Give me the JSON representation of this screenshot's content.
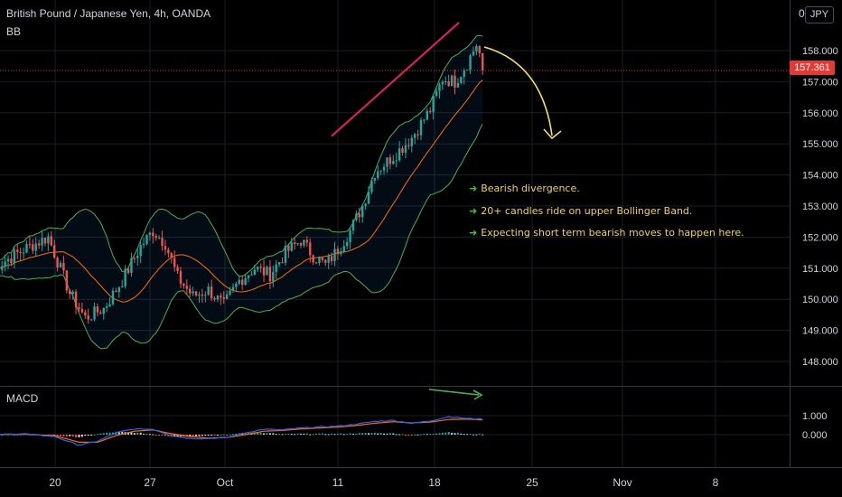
{
  "header": {
    "symbol_title": "British Pound / Japanese Yen, 4h, OANDA",
    "indicator": "BB",
    "currency": "JPY",
    "currency_right": "0"
  },
  "price_label": "157.361",
  "annotations": [
    "Bearish divergence.",
    "20+ candles ride on upper Bollinger Band.",
    "Expecting short term bearish moves to happen here."
  ],
  "macd_pane": {
    "title": "MACD"
  },
  "colors": {
    "bull": "#26a69a",
    "bear": "#ef5350",
    "macd_line": "#2962ff",
    "signal_line": "#ff6d00",
    "bb_band": "#4caf50",
    "bb_basis": "#ff6d00",
    "trendline": "#e91e63",
    "projection": "#f5e25c",
    "macd_divergence": "#4caf50",
    "note_bullet": "#33cc33",
    "note_text": "#f0d35c"
  },
  "chart_data": [
    {
      "type": "candlestick",
      "title": "British Pound / Japanese Yen, 4h, OANDA",
      "indicator": "BB",
      "x_ticks": [
        "20",
        "27",
        "Oct",
        "11",
        "18",
        "25",
        "Nov",
        "8"
      ],
      "ylim": [
        147.5,
        159.0
      ],
      "y_ticks": [
        "158.000",
        "157.000",
        "156.000",
        "155.000",
        "154.000",
        "153.000",
        "152.000",
        "151.000",
        "150.000",
        "149.000",
        "148.000"
      ],
      "last_price": 157.361,
      "close_path": [
        [
          0,
          151.0
        ],
        [
          10,
          151.6
        ],
        [
          18,
          152.0
        ],
        [
          25,
          150.2
        ],
        [
          30,
          149.4
        ],
        [
          36,
          149.7
        ],
        [
          42,
          150.6
        ],
        [
          48,
          151.7
        ],
        [
          52,
          152.2
        ],
        [
          56,
          151.8
        ],
        [
          60,
          150.7
        ],
        [
          65,
          150.1
        ],
        [
          70,
          150.3
        ],
        [
          75,
          149.8
        ],
        [
          80,
          150.6
        ],
        [
          85,
          151.0
        ],
        [
          90,
          150.8
        ],
        [
          95,
          151.5
        ],
        [
          100,
          151.9
        ],
        [
          104,
          151.4
        ],
        [
          108,
          151.1
        ],
        [
          112,
          151.6
        ],
        [
          116,
          152.2
        ],
        [
          120,
          153.0
        ],
        [
          124,
          154.1
        ],
        [
          130,
          154.6
        ],
        [
          136,
          155.2
        ],
        [
          142,
          156.1
        ],
        [
          146,
          157.1
        ],
        [
          150,
          157.0
        ],
        [
          154,
          157.6
        ],
        [
          157,
          158.2
        ],
        [
          159,
          157.6
        ]
      ],
      "grid": true
    },
    {
      "type": "macd",
      "title": "MACD",
      "ylim": [
        -0.9,
        1.1
      ],
      "y_ticks": [
        "1.000",
        "0.000"
      ],
      "macd_path": [
        [
          0,
          0.0
        ],
        [
          10,
          0.05
        ],
        [
          20,
          -0.1
        ],
        [
          28,
          -0.55
        ],
        [
          34,
          -0.35
        ],
        [
          40,
          0.1
        ],
        [
          46,
          0.3
        ],
        [
          52,
          0.28
        ],
        [
          58,
          -0.05
        ],
        [
          64,
          -0.2
        ],
        [
          70,
          -0.2
        ],
        [
          76,
          -0.15
        ],
        [
          82,
          0.1
        ],
        [
          88,
          0.28
        ],
        [
          94,
          0.25
        ],
        [
          100,
          0.35
        ],
        [
          106,
          0.4
        ],
        [
          112,
          0.45
        ],
        [
          118,
          0.55
        ],
        [
          124,
          0.7
        ],
        [
          130,
          0.75
        ],
        [
          136,
          0.6
        ],
        [
          142,
          0.72
        ],
        [
          148,
          0.95
        ],
        [
          154,
          0.85
        ],
        [
          159,
          0.82
        ]
      ],
      "signal_path": [
        [
          0,
          0.0
        ],
        [
          10,
          0.02
        ],
        [
          20,
          -0.05
        ],
        [
          28,
          -0.4
        ],
        [
          34,
          -0.4
        ],
        [
          40,
          -0.05
        ],
        [
          46,
          0.18
        ],
        [
          52,
          0.25
        ],
        [
          58,
          0.05
        ],
        [
          64,
          -0.1
        ],
        [
          70,
          -0.18
        ],
        [
          76,
          -0.15
        ],
        [
          82,
          0.0
        ],
        [
          88,
          0.18
        ],
        [
          94,
          0.22
        ],
        [
          100,
          0.3
        ],
        [
          106,
          0.35
        ],
        [
          112,
          0.4
        ],
        [
          118,
          0.48
        ],
        [
          124,
          0.6
        ],
        [
          130,
          0.68
        ],
        [
          136,
          0.62
        ],
        [
          142,
          0.66
        ],
        [
          148,
          0.8
        ],
        [
          154,
          0.82
        ],
        [
          159,
          0.78
        ]
      ],
      "grid": true
    }
  ]
}
